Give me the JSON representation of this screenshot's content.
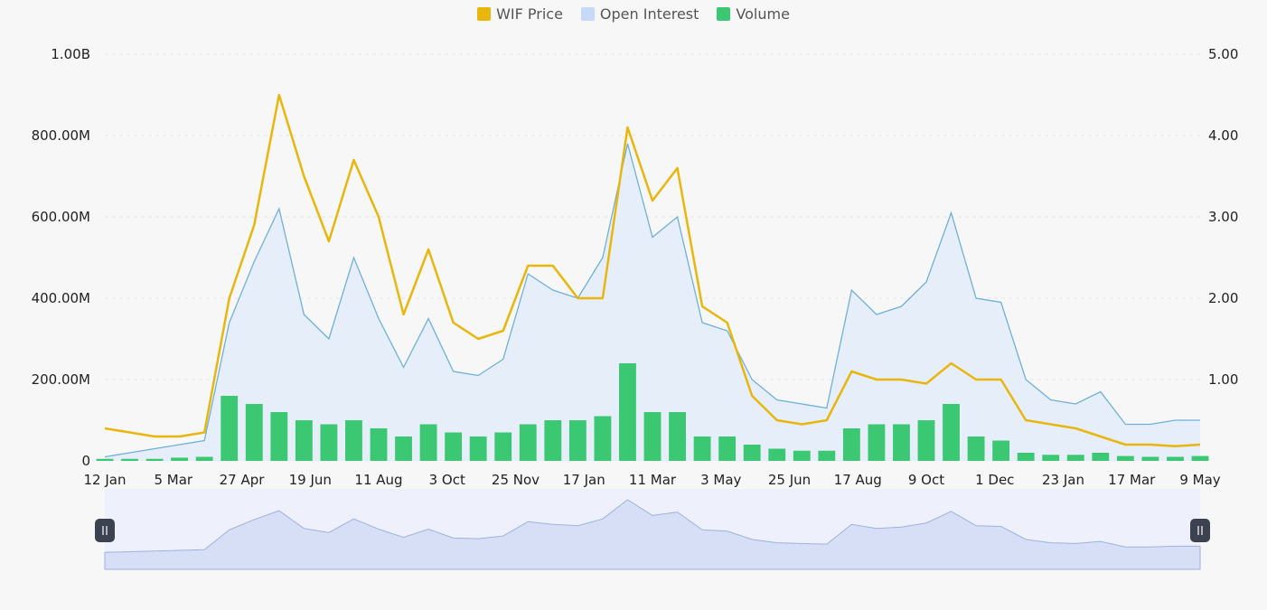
{
  "chart_data": {
    "type": "line",
    "title": "",
    "legend_position": "top-center",
    "legend": [
      "WIF Price",
      "Open Interest",
      "Volume"
    ],
    "colors": {
      "price": "#e8b60d",
      "oi_line": "#6fb0da",
      "oi_fill": "#e6eff9",
      "volume": "#3cc873",
      "navigator_fill": "#d7dff6",
      "navigator_line": "#9db2dc",
      "grid": "#e6e6e6"
    },
    "left_axis": {
      "ticks": [
        "0",
        "200.00M",
        "400.00M",
        "600.00M",
        "800.00M",
        "1.00B"
      ],
      "min": 0,
      "max": 1000000000
    },
    "right_axis": {
      "ticks": [
        "",
        "1.00",
        "2.00",
        "3.00",
        "4.00",
        "5.00"
      ],
      "min": 0,
      "max": 5
    },
    "x_ticks": [
      "12 Jan",
      "5 Mar",
      "27 Apr",
      "19 Jun",
      "11 Aug",
      "3 Oct",
      "25 Nov",
      "17 Jan",
      "11 Mar",
      "3 May",
      "25 Jun",
      "17 Aug",
      "9 Oct",
      "1 Dec",
      "23 Jan",
      "17 Mar",
      "9 May"
    ],
    "series": [
      {
        "name": "WIF Price",
        "axis": "right",
        "values": [
          0.4,
          0.35,
          0.3,
          0.3,
          0.35,
          2.0,
          2.9,
          4.5,
          3.5,
          2.7,
          3.7,
          3.0,
          1.8,
          2.6,
          1.7,
          1.5,
          1.6,
          2.4,
          2.4,
          2.0,
          2.0,
          4.1,
          3.2,
          3.6,
          1.9,
          1.7,
          0.8,
          0.5,
          0.45,
          0.5,
          1.1,
          1.0,
          1.0,
          0.95,
          1.2,
          1.0,
          1.0,
          0.5,
          0.45,
          0.4,
          0.3,
          0.2,
          0.2,
          0.18,
          0.2
        ]
      },
      {
        "name": "Open Interest",
        "axis": "left",
        "values": [
          10000000,
          20000000,
          30000000,
          40000000,
          50000000,
          340000000,
          490000000,
          620000000,
          360000000,
          300000000,
          500000000,
          350000000,
          230000000,
          350000000,
          220000000,
          210000000,
          250000000,
          460000000,
          420000000,
          400000000,
          500000000,
          780000000,
          550000000,
          600000000,
          340000000,
          320000000,
          200000000,
          150000000,
          140000000,
          130000000,
          420000000,
          360000000,
          380000000,
          440000000,
          610000000,
          400000000,
          390000000,
          200000000,
          150000000,
          140000000,
          170000000,
          90000000,
          90000000,
          100000000,
          100000000
        ]
      },
      {
        "name": "Volume",
        "axis": "left",
        "values": [
          5000000,
          5000000,
          5000000,
          8000000,
          10000000,
          160000000,
          140000000,
          120000000,
          100000000,
          90000000,
          100000000,
          80000000,
          60000000,
          90000000,
          70000000,
          60000000,
          70000000,
          90000000,
          100000000,
          100000000,
          110000000,
          240000000,
          120000000,
          120000000,
          60000000,
          60000000,
          40000000,
          30000000,
          25000000,
          25000000,
          80000000,
          90000000,
          90000000,
          100000000,
          140000000,
          60000000,
          50000000,
          20000000,
          15000000,
          15000000,
          20000000,
          12000000,
          10000000,
          10000000,
          12000000
        ]
      }
    ]
  }
}
